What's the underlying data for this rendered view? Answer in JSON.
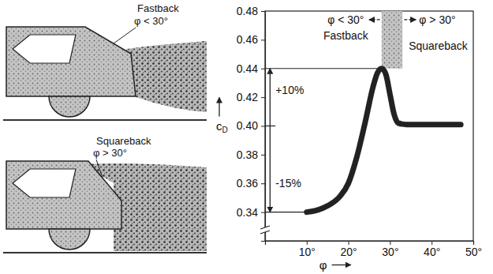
{
  "illustrations": [
    {
      "label": "Fastback",
      "angle_label": "φ < 30°"
    },
    {
      "label": "Squareback",
      "angle_label": "φ > 30°"
    }
  ],
  "chart_data": {
    "type": "line",
    "x_label": "φ",
    "y_label": "c",
    "y_label_subscript": "D",
    "x": [
      10,
      12,
      14,
      16,
      18,
      20,
      22,
      24,
      26,
      27,
      28,
      29,
      30,
      31,
      32,
      34,
      40,
      47
    ],
    "values": [
      0.34,
      0.341,
      0.343,
      0.346,
      0.351,
      0.36,
      0.378,
      0.402,
      0.428,
      0.437,
      0.44,
      0.436,
      0.422,
      0.408,
      0.402,
      0.401,
      0.401,
      0.401
    ],
    "color": "#222222",
    "xlim": [
      0,
      50
    ],
    "xticks": [
      {
        "value": 10,
        "label": "10°"
      },
      {
        "value": 20,
        "label": "20°"
      },
      {
        "value": 30,
        "label": "30°"
      },
      {
        "value": 40,
        "label": "40°"
      },
      {
        "value": 50,
        "label": "50°"
      }
    ],
    "ylim": [
      0.32,
      0.48
    ],
    "yticks": [
      {
        "value": 0.34,
        "label": "0.34"
      },
      {
        "value": 0.36,
        "label": "0.36"
      },
      {
        "value": 0.38,
        "label": "0.38"
      },
      {
        "value": 0.4,
        "label": "0.40"
      },
      {
        "value": 0.42,
        "label": "0.42"
      },
      {
        "value": 0.44,
        "label": "0.44"
      },
      {
        "value": 0.46,
        "label": "0.46"
      },
      {
        "value": 0.48,
        "label": "0.48"
      }
    ],
    "grid": false,
    "shaded_region": {
      "x": [
        28,
        33
      ],
      "y": [
        0.44,
        0.48
      ]
    },
    "reference_lines": [
      {
        "y": 0.44,
        "x": [
          0,
          28
        ]
      },
      {
        "y": 0.4,
        "x": [
          0,
          2.5
        ]
      },
      {
        "y": 0.34,
        "x": [
          0,
          10
        ]
      }
    ],
    "arrows": [
      {
        "x": [
          27.6,
          25
        ],
        "y": [
          0.474,
          0.474
        ]
      },
      {
        "x": [
          33.4,
          36.2
        ],
        "y": [
          0.474,
          0.474
        ]
      },
      {
        "x": [
          1.2,
          1.2
        ],
        "y": [
          0.4,
          0.44
        ]
      },
      {
        "x": [
          1.2,
          1.2
        ],
        "y": [
          0.4,
          0.34
        ]
      }
    ],
    "annotations": [
      {
        "text": "φ < 30°",
        "x": 15,
        "y": 0.474
      },
      {
        "text": "Fastback",
        "x": 14,
        "y": 0.463
      },
      {
        "text": "φ > 30°",
        "x": 37,
        "y": 0.474
      },
      {
        "text": "Squareback",
        "x": 34.5,
        "y": 0.456
      },
      {
        "text": "+10%",
        "x": 2.5,
        "y": 0.425
      },
      {
        "text": "-15%",
        "x": 2.5,
        "y": 0.36
      }
    ]
  }
}
